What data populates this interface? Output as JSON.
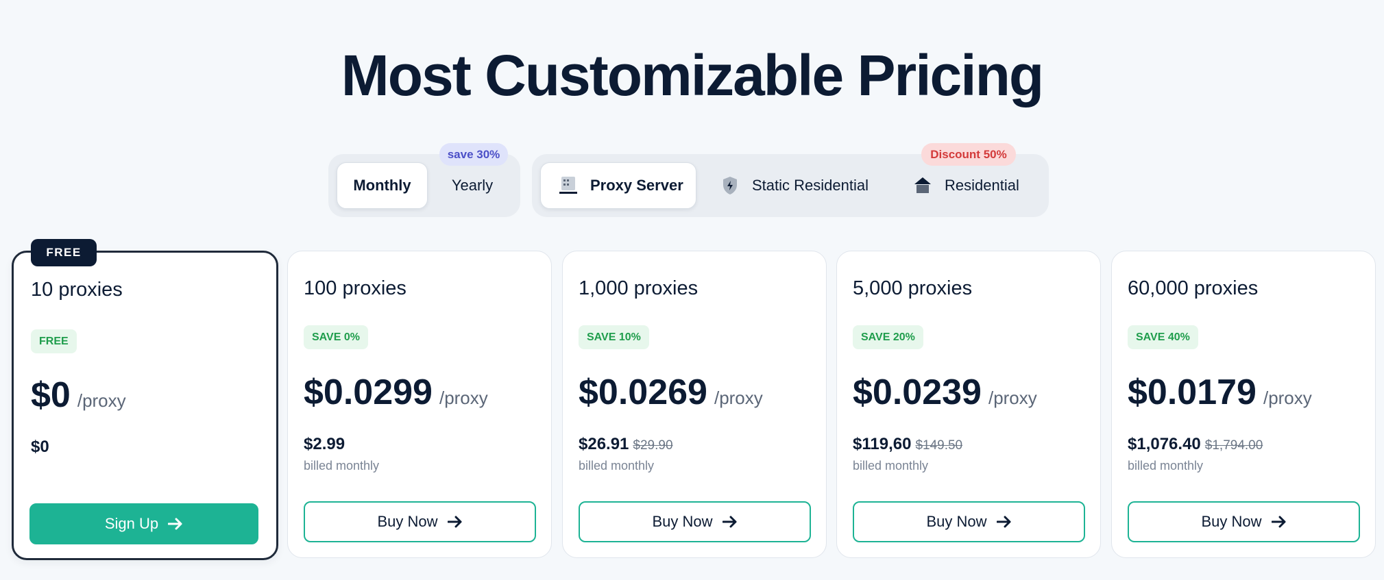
{
  "title": "Most Customizable Pricing",
  "billing": {
    "options": [
      "Monthly",
      "Yearly"
    ],
    "selected": "Monthly",
    "yearly_badge": "save 30%"
  },
  "product": {
    "options": [
      {
        "label": "Proxy Server",
        "icon": "server-icon"
      },
      {
        "label": "Static Residential",
        "icon": "shield-bolt-icon"
      },
      {
        "label": "Residential",
        "icon": "house-icon"
      }
    ],
    "selected": "Proxy Server",
    "residential_badge": "Discount 50%"
  },
  "plans": [
    {
      "tag": "FREE",
      "name": "10 proxies",
      "save": "FREE",
      "price": "$0",
      "unit": "/proxy",
      "total": "$0",
      "old_total": "",
      "billed": "",
      "button": "Sign Up",
      "highlighted": true
    },
    {
      "name": "100 proxies",
      "save": "SAVE 0%",
      "price": "$0.0299",
      "unit": "/proxy",
      "total": "$2.99",
      "old_total": "",
      "billed": "billed monthly",
      "button": "Buy Now",
      "highlighted": false
    },
    {
      "name": "1,000 proxies",
      "save": "SAVE 10%",
      "price": "$0.0269",
      "unit": "/proxy",
      "total": "$26.91",
      "old_total": "$29.90",
      "billed": "billed monthly",
      "button": "Buy Now",
      "highlighted": false
    },
    {
      "name": "5,000 proxies",
      "save": "SAVE 20%",
      "price": "$0.0239",
      "unit": "/proxy",
      "total": "$119,60",
      "old_total": "$149.50",
      "billed": "billed monthly",
      "button": "Buy Now",
      "highlighted": false
    },
    {
      "name": "60,000 proxies",
      "save": "SAVE 40%",
      "price": "$0.0179",
      "unit": "/proxy",
      "total": "$1,076.40",
      "old_total": "$1,794.00",
      "billed": "billed monthly",
      "button": "Buy Now",
      "highlighted": false
    }
  ],
  "colors": {
    "accent": "#1db394",
    "navy": "#0c1b33",
    "save_green": "#1f9d4c",
    "discount_red": "#d33a3a",
    "yearly_badge": "#4b4fc7"
  }
}
